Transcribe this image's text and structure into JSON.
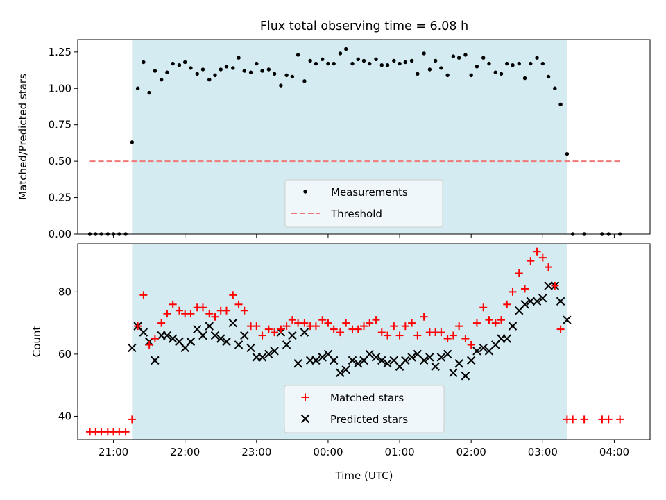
{
  "colors": {
    "shade": "#d4ebf1",
    "threshold": "#f07878",
    "matched": "#ff0000",
    "predicted": "#000000",
    "measurement": "#000000",
    "legend_bg": "#f5f9fb",
    "legend_edge": "#cccccc"
  },
  "chart_data": [
    {
      "type": "scatter",
      "title": "Flux total observing time = 6.08 h",
      "xlabel": "",
      "ylabel": "Matched/Predicted stars",
      "xlim": [
        20.5,
        28.5
      ],
      "ylim": [
        0.0,
        1.335
      ],
      "yticks": [
        {
          "value": 0.0,
          "label": "0.00"
        },
        {
          "value": 0.25,
          "label": "0.25"
        },
        {
          "value": 0.5,
          "label": "0.50"
        },
        {
          "value": 0.75,
          "label": "0.75"
        },
        {
          "value": 1.0,
          "label": "1.00"
        },
        {
          "value": 1.25,
          "label": "1.25"
        }
      ],
      "xticks": [
        21,
        22,
        23,
        24,
        25,
        26,
        27,
        28
      ],
      "shaded_range": [
        21.26,
        27.34
      ],
      "threshold": {
        "name": "Threshold",
        "value": 0.5,
        "x_range": [
          20.67,
          28.1
        ]
      },
      "legend": {
        "position": "lower center",
        "entries": [
          "Measurements",
          "Threshold"
        ]
      },
      "series": [
        {
          "name": "Measurements",
          "x": [
            20.67,
            20.75,
            20.83,
            20.92,
            21.0,
            21.08,
            21.17,
            21.26,
            21.34,
            21.42,
            21.5,
            21.58,
            21.67,
            21.75,
            21.83,
            21.92,
            22.0,
            22.08,
            22.17,
            22.25,
            22.34,
            22.42,
            22.5,
            22.58,
            22.67,
            22.75,
            22.83,
            22.92,
            23.0,
            23.08,
            23.17,
            23.25,
            23.34,
            23.42,
            23.5,
            23.58,
            23.67,
            23.75,
            23.83,
            23.92,
            24.0,
            24.08,
            24.17,
            24.25,
            24.34,
            24.42,
            24.5,
            24.58,
            24.67,
            24.75,
            24.83,
            24.92,
            25.0,
            25.08,
            25.17,
            25.25,
            25.34,
            25.42,
            25.5,
            25.58,
            25.67,
            25.75,
            25.83,
            25.92,
            26.0,
            26.08,
            26.17,
            26.25,
            26.34,
            26.42,
            26.5,
            26.58,
            26.67,
            26.75,
            26.83,
            26.92,
            27.0,
            27.08,
            27.17,
            27.25,
            27.34,
            27.42,
            27.58,
            27.83,
            27.92,
            28.08
          ],
          "y": [
            0.0,
            0.0,
            0.0,
            0.0,
            0.0,
            0.0,
            0.0,
            0.63,
            1.0,
            1.18,
            0.97,
            1.12,
            1.06,
            1.11,
            1.17,
            1.16,
            1.18,
            1.14,
            1.1,
            1.13,
            1.06,
            1.09,
            1.13,
            1.15,
            1.14,
            1.21,
            1.12,
            1.11,
            1.17,
            1.12,
            1.13,
            1.1,
            1.02,
            1.09,
            1.08,
            1.23,
            1.05,
            1.19,
            1.17,
            1.2,
            1.17,
            1.17,
            1.24,
            1.27,
            1.17,
            1.2,
            1.19,
            1.17,
            1.2,
            1.16,
            1.16,
            1.19,
            1.17,
            1.18,
            1.19,
            1.1,
            1.24,
            1.13,
            1.19,
            1.14,
            1.09,
            1.22,
            1.21,
            1.23,
            1.09,
            1.15,
            1.21,
            1.17,
            1.11,
            1.1,
            1.17,
            1.16,
            1.17,
            1.07,
            1.17,
            1.21,
            1.17,
            1.08,
            1.0,
            0.89,
            0.55,
            0.0,
            0.0,
            0.0,
            0.0,
            0.0
          ]
        }
      ]
    },
    {
      "type": "scatter",
      "title": "",
      "xlabel": "Time (UTC)",
      "ylabel": "Count",
      "xlim": [
        20.5,
        28.5
      ],
      "ylim": [
        32.5,
        95.5
      ],
      "yticks": [
        {
          "value": 40,
          "label": "40"
        },
        {
          "value": 60,
          "label": "60"
        },
        {
          "value": 80,
          "label": "80"
        }
      ],
      "xticks": [
        {
          "value": 21,
          "label": "21:00"
        },
        {
          "value": 22,
          "label": "22:00"
        },
        {
          "value": 23,
          "label": "23:00"
        },
        {
          "value": 24,
          "label": "00:00"
        },
        {
          "value": 25,
          "label": "01:00"
        },
        {
          "value": 26,
          "label": "02:00"
        },
        {
          "value": 27,
          "label": "03:00"
        },
        {
          "value": 28,
          "label": "04:00"
        }
      ],
      "shaded_range": [
        21.26,
        27.34
      ],
      "legend": {
        "position": "lower center",
        "entries": [
          "Matched stars",
          "Predicted stars"
        ]
      },
      "series": [
        {
          "name": "Matched stars",
          "marker": "+",
          "x": [
            20.67,
            20.75,
            20.83,
            20.92,
            21.0,
            21.08,
            21.17,
            21.26,
            21.34,
            21.42,
            21.5,
            21.58,
            21.67,
            21.75,
            21.83,
            21.92,
            22.0,
            22.08,
            22.17,
            22.25,
            22.34,
            22.42,
            22.5,
            22.58,
            22.67,
            22.75,
            22.83,
            22.92,
            23.0,
            23.08,
            23.17,
            23.25,
            23.34,
            23.42,
            23.5,
            23.58,
            23.67,
            23.75,
            23.83,
            23.92,
            24.0,
            24.08,
            24.17,
            24.25,
            24.34,
            24.42,
            24.5,
            24.58,
            24.67,
            24.75,
            24.83,
            24.92,
            25.0,
            25.08,
            25.17,
            25.25,
            25.34,
            25.42,
            25.5,
            25.58,
            25.67,
            25.75,
            25.83,
            25.92,
            26.0,
            26.08,
            26.17,
            26.25,
            26.34,
            26.42,
            26.5,
            26.58,
            26.67,
            26.75,
            26.83,
            26.92,
            27.0,
            27.08,
            27.17,
            27.25,
            27.34,
            27.42,
            27.58,
            27.83,
            27.92,
            28.08
          ],
          "y": [
            35,
            35,
            35,
            35,
            35,
            35,
            35,
            39,
            69,
            79,
            63,
            65,
            70,
            73,
            76,
            74,
            73,
            73,
            75,
            75,
            73,
            72,
            74,
            74,
            79,
            76,
            74,
            69,
            69,
            66,
            68,
            67,
            68,
            69,
            71,
            70,
            70,
            69,
            69,
            71,
            70,
            68,
            67,
            70,
            68,
            68,
            69,
            70,
            71,
            67,
            66,
            69,
            66,
            69,
            70,
            66,
            72,
            67,
            67,
            67,
            65,
            66,
            69,
            65,
            63,
            70,
            75,
            71,
            70,
            71,
            76,
            80,
            86,
            81,
            90,
            93,
            91,
            88,
            82,
            68,
            39,
            39,
            39,
            39,
            39,
            39
          ]
        },
        {
          "name": "Predicted stars",
          "marker": "x",
          "x": [
            21.26,
            21.34,
            21.42,
            21.5,
            21.58,
            21.67,
            21.75,
            21.83,
            21.92,
            22.0,
            22.08,
            22.17,
            22.25,
            22.34,
            22.42,
            22.5,
            22.58,
            22.67,
            22.75,
            22.83,
            22.92,
            23.0,
            23.08,
            23.17,
            23.25,
            23.34,
            23.42,
            23.5,
            23.58,
            23.67,
            23.75,
            23.83,
            23.92,
            24.0,
            24.08,
            24.17,
            24.25,
            24.34,
            24.42,
            24.5,
            24.58,
            24.67,
            24.75,
            24.83,
            24.92,
            25.0,
            25.08,
            25.17,
            25.25,
            25.34,
            25.42,
            25.5,
            25.58,
            25.67,
            25.75,
            25.83,
            25.92,
            26.0,
            26.08,
            26.17,
            26.25,
            26.34,
            26.42,
            26.5,
            26.58,
            26.67,
            26.75,
            26.83,
            26.92,
            27.0,
            27.08,
            27.17,
            27.25,
            27.34
          ],
          "y": [
            62,
            69,
            67,
            64,
            58,
            66,
            66,
            65,
            64,
            62,
            64,
            68,
            66,
            69,
            66,
            65,
            64,
            70,
            63,
            66,
            62,
            59,
            59,
            60,
            61,
            67,
            63,
            66,
            57,
            67,
            58,
            58,
            59,
            60,
            58,
            54,
            55,
            58,
            57,
            58,
            60,
            59,
            58,
            57,
            58,
            56,
            58,
            59,
            60,
            58,
            59,
            56,
            59,
            60,
            54,
            57,
            53,
            58,
            61,
            62,
            61,
            63,
            65,
            65,
            69,
            74,
            76,
            77,
            77,
            78,
            82,
            82,
            77,
            71
          ]
        }
      ]
    }
  ]
}
